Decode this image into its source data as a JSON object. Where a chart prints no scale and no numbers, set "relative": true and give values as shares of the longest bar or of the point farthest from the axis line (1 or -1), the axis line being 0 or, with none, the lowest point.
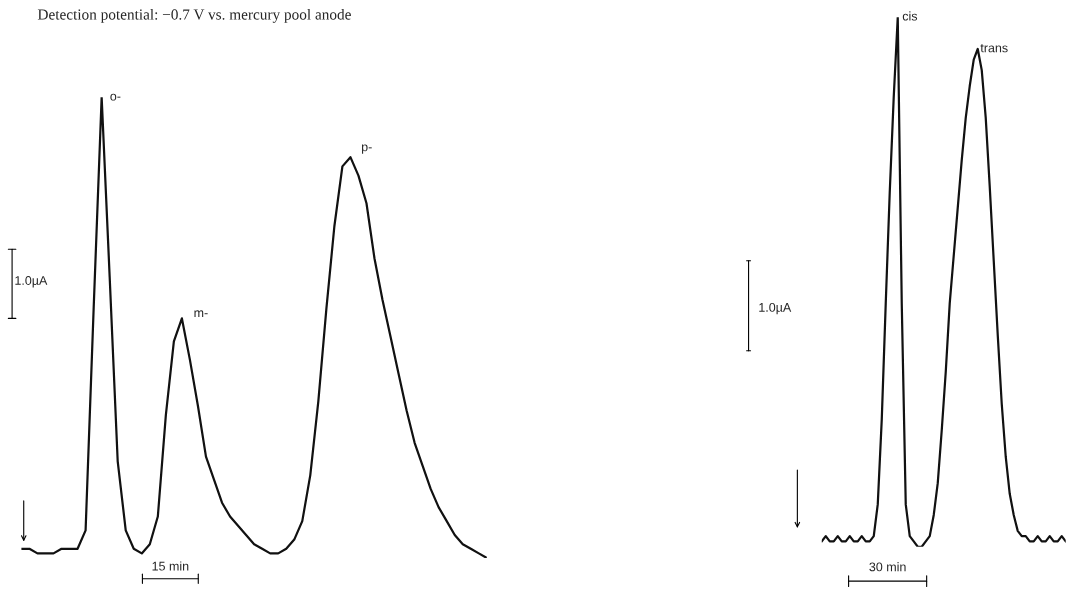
{
  "chart_data": [
    {
      "type": "line",
      "title": "Detection potential: −0.7 V vs. mercury pool anode",
      "relative": true,
      "color": "#111111",
      "categories": [
        null,
        null,
        null,
        null,
        null,
        null,
        null,
        null,
        null,
        null,
        null,
        null,
        null,
        null,
        null,
        null,
        null,
        null,
        null,
        null,
        null,
        null,
        null,
        null,
        null,
        null,
        null,
        null,
        null,
        null,
        null,
        null,
        null,
        null,
        null,
        null,
        null,
        null,
        null,
        null,
        null,
        null,
        null,
        null,
        null,
        null,
        null,
        null,
        null,
        null,
        null,
        null,
        null,
        null,
        null,
        null,
        null,
        null,
        null
      ],
      "values": [
        0.02,
        0.02,
        0.01,
        0.01,
        0.01,
        0.02,
        0.02,
        0.02,
        0.06,
        0.54,
        1.0,
        0.61,
        0.21,
        0.06,
        0.02,
        0.01,
        0.03,
        0.09,
        0.31,
        0.47,
        0.52,
        0.43,
        0.33,
        0.22,
        0.17,
        0.12,
        0.09,
        0.07,
        0.05,
        0.03,
        0.02,
        0.01,
        0.01,
        0.02,
        0.04,
        0.08,
        0.18,
        0.34,
        0.54,
        0.72,
        0.85,
        0.87,
        0.83,
        0.77,
        0.65,
        0.56,
        0.48,
        0.4,
        0.32,
        0.25,
        0.2,
        0.15,
        0.11,
        0.08,
        0.05,
        0.03,
        0.02,
        0.01,
        0.0
      ],
      "annotations": [
        "o-",
        "m-",
        "p-",
        "1.0µA",
        "15 min"
      ]
    },
    {
      "type": "line",
      "relative": true,
      "color": "#111111",
      "categories": [
        null,
        null,
        null,
        null,
        null,
        null,
        null,
        null,
        null,
        null,
        null,
        null,
        null,
        null,
        null,
        null,
        null,
        null,
        null,
        null,
        null,
        null,
        null,
        null,
        null,
        null,
        null,
        null,
        null,
        null,
        null,
        null,
        null,
        null,
        null,
        null,
        null,
        null,
        null,
        null,
        null,
        null,
        null,
        null,
        null,
        null,
        null,
        null,
        null,
        null,
        null,
        null,
        null,
        null,
        null,
        null,
        null,
        null,
        null,
        null,
        null,
        null
      ],
      "values": [
        0.01,
        0.02,
        0.01,
        0.01,
        0.02,
        0.01,
        0.01,
        0.02,
        0.01,
        0.01,
        0.02,
        0.01,
        0.01,
        0.02,
        0.08,
        0.24,
        0.46,
        0.67,
        0.85,
        1.0,
        0.46,
        0.08,
        0.02,
        0.01,
        0.0,
        0.0,
        0.01,
        0.02,
        0.06,
        0.12,
        0.22,
        0.33,
        0.46,
        0.55,
        0.64,
        0.73,
        0.81,
        0.87,
        0.92,
        0.94,
        0.9,
        0.81,
        0.68,
        0.54,
        0.4,
        0.27,
        0.17,
        0.1,
        0.06,
        0.03,
        0.02,
        0.02,
        0.01,
        0.01,
        0.02,
        0.01,
        0.01,
        0.02,
        0.01,
        0.01,
        0.02,
        0.01
      ],
      "annotations": [
        "cis",
        "trans",
        "1.0µA",
        "30 min"
      ]
    }
  ]
}
